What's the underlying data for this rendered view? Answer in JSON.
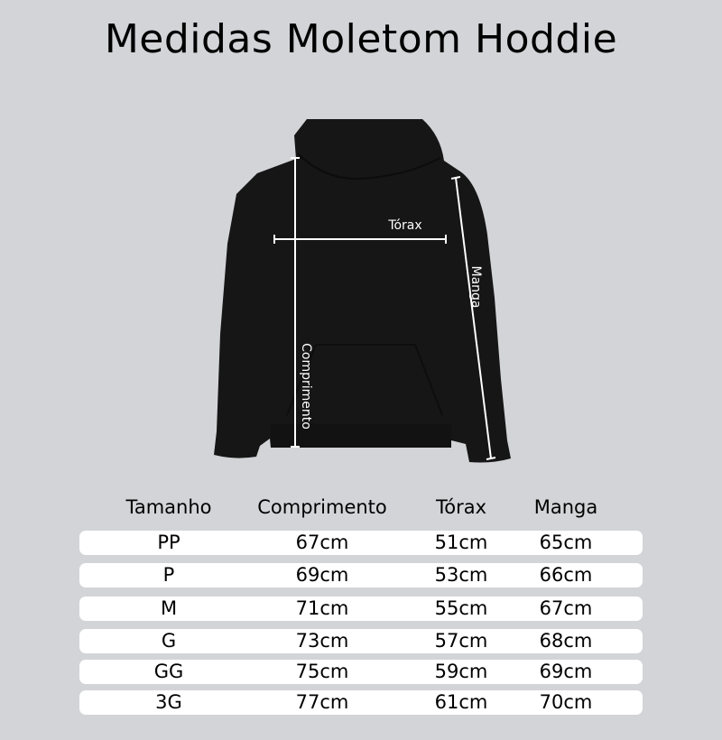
{
  "title": "Medidas Moletom Hoddie",
  "diagram": {
    "garment_color": "#1a1a1a",
    "line_color": "#ffffff",
    "labels": {
      "chest": "Tórax",
      "sleeve": "Manga",
      "length": "Comprimento"
    }
  },
  "table": {
    "headers": [
      "Tamanho",
      "Comprimento",
      "Tórax",
      "Manga"
    ],
    "rows": [
      [
        "PP",
        "67cm",
        "51cm",
        "65cm"
      ],
      [
        "P",
        "69cm",
        "53cm",
        "66cm"
      ],
      [
        "M",
        "71cm",
        "55cm",
        "67cm"
      ],
      [
        "G",
        "73cm",
        "57cm",
        "68cm"
      ],
      [
        "GG",
        "75cm",
        "59cm",
        "69cm"
      ],
      [
        "3G",
        "77cm",
        "61cm",
        "70cm"
      ]
    ]
  }
}
